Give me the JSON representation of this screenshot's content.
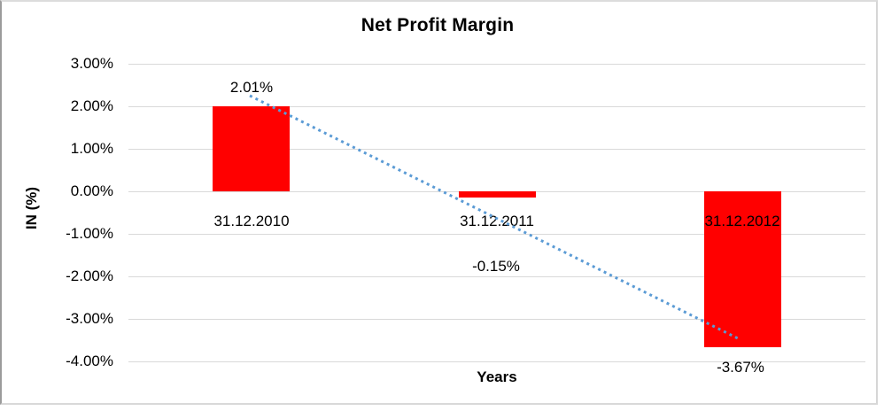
{
  "chart_data": {
    "type": "bar",
    "title": "Net Profit Margin",
    "xlabel": "Years",
    "ylabel": "IN (%)",
    "categories": [
      "31.12.2010",
      "31.12.2011",
      "31.12.2012"
    ],
    "values": [
      2.01,
      -0.15,
      -3.67
    ],
    "data_labels": [
      "2.01%",
      "-0.15%",
      "-3.67%"
    ],
    "y_ticks": [
      "3.00%",
      "2.00%",
      "1.00%",
      "0.00%",
      "-1.00%",
      "-2.00%",
      "-3.00%",
      "-4.00%"
    ],
    "y_tick_values": [
      3,
      2,
      1,
      0,
      -1,
      -2,
      -3,
      -4
    ],
    "ylim": [
      -4,
      3
    ],
    "grid": true,
    "legend_position": "none",
    "bar_color": "#FF0000",
    "trendline": {
      "type": "linear",
      "style": "dotted",
      "color": "#5B9BD5"
    },
    "gridline_color": "#D9D9D9"
  }
}
